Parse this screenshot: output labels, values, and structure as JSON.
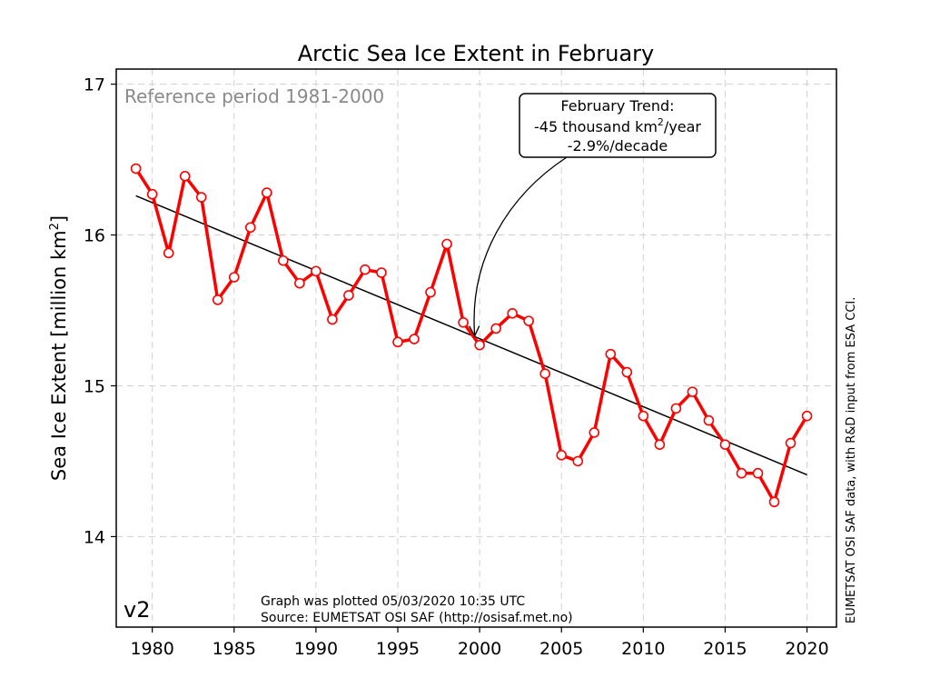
{
  "chart_data": {
    "type": "line",
    "title": "Arctic Sea Ice Extent in February",
    "xlabel": "",
    "ylabel": "Sea Ice Extent [million km²]",
    "xlim": [
      1977.8,
      2021.8
    ],
    "ylim": [
      13.4,
      17.1
    ],
    "xticks": [
      1980,
      1985,
      1990,
      1995,
      2000,
      2005,
      2010,
      2015,
      2020
    ],
    "yticks": [
      14,
      15,
      16,
      17
    ],
    "grid": true,
    "x": [
      1979,
      1980,
      1981,
      1982,
      1983,
      1984,
      1985,
      1986,
      1987,
      1988,
      1989,
      1990,
      1991,
      1992,
      1993,
      1994,
      1995,
      1996,
      1997,
      1998,
      1999,
      2000,
      2001,
      2002,
      2003,
      2004,
      2005,
      2006,
      2007,
      2008,
      2009,
      2010,
      2011,
      2012,
      2013,
      2014,
      2015,
      2016,
      2017,
      2018,
      2019,
      2020
    ],
    "series": [
      {
        "values": [
          16.44,
          16.27,
          15.88,
          16.39,
          16.25,
          15.57,
          15.72,
          16.05,
          16.28,
          15.83,
          15.68,
          15.76,
          15.44,
          15.6,
          15.77,
          15.75,
          15.29,
          15.31,
          15.62,
          15.94,
          15.42,
          15.27,
          15.38,
          15.48,
          15.43,
          15.08,
          14.54,
          14.5,
          14.69,
          15.21,
          15.09,
          14.8,
          14.61,
          14.85,
          14.96,
          14.77,
          14.61,
          14.42,
          14.42,
          14.23,
          14.62,
          14.8
        ],
        "color": "#ff0000"
      }
    ],
    "trend": {
      "x": [
        1979,
        2020
      ],
      "y": [
        16.26,
        14.41
      ],
      "color": "#000000"
    },
    "annotations": {
      "reference": "Reference period 1981-2000",
      "trend_line1": "February Trend:",
      "trend_line2_pre": "-45 thousand km",
      "trend_line2_sup": "2",
      "trend_line2_post": "/year",
      "trend_line3": "-2.9%/decade",
      "trend_arrow_target": {
        "x": 1999.7,
        "y": 15.33
      },
      "version": "v2",
      "footer_line1": "Graph was plotted 05/03/2020 10:35 UTC",
      "footer_line2": "Source: EUMETSAT OSI SAF (http://osisaf.met.no)",
      "credit": "EUMETSAT OSI SAF data, with R&D input from ESA CCI."
    }
  }
}
